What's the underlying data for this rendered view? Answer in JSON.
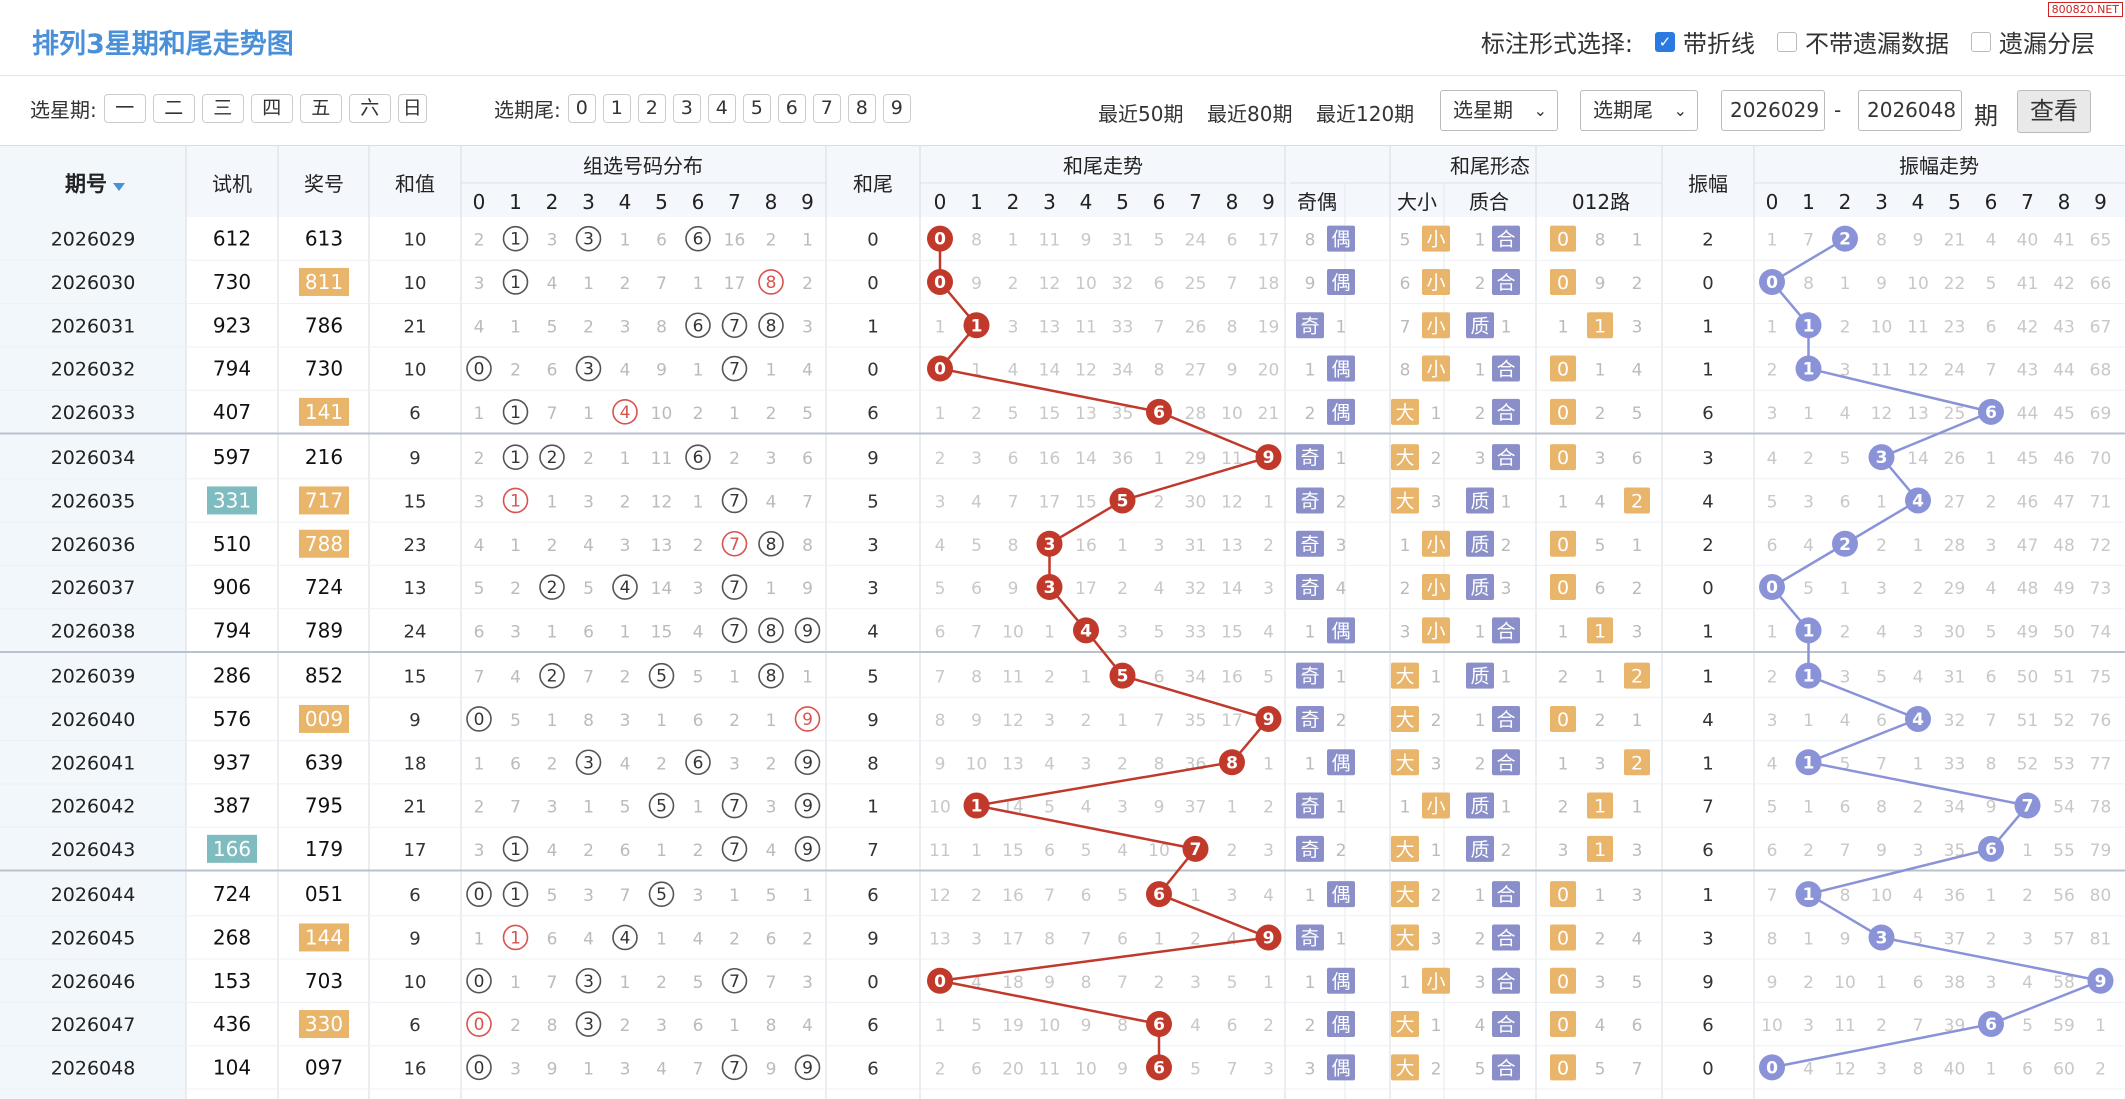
{
  "header": {
    "title": "排列3星期和尾走势图",
    "mode_label": "标注形式选择:",
    "watermark": "800820.NET",
    "options": [
      {
        "label": "带折线",
        "checked": true
      },
      {
        "label": "不带遗漏数据",
        "checked": false
      },
      {
        "label": "遗漏分层",
        "checked": false
      }
    ]
  },
  "filters": {
    "weekday_label": "选星期:",
    "weekdays": [
      "一",
      "二",
      "三",
      "四",
      "五",
      "六",
      "日"
    ],
    "tail_label": "选期尾:",
    "tails": [
      "0",
      "1",
      "2",
      "3",
      "4",
      "5",
      "6",
      "7",
      "8",
      "9"
    ],
    "recent": [
      "最近50期",
      "最近80期",
      "最近120期"
    ],
    "select_week": "选星期",
    "select_tail": "选期尾",
    "from": "2026029",
    "dash": "-",
    "to": "2026048",
    "qi": "期",
    "query_button": "查看"
  },
  "columns": {
    "issue": "期号",
    "trial": "试机",
    "prize": "奖号",
    "sum": "和值",
    "group": "组选号码分布",
    "tail": "和尾",
    "tail_trend": "和尾走势",
    "form": "和尾形态",
    "parity": "奇偶",
    "size": "大小",
    "prime": "质合",
    "route": "012路",
    "amp": "振幅",
    "amp_trend": "振幅走势",
    "digits": [
      "0",
      "1",
      "2",
      "3",
      "4",
      "5",
      "6",
      "7",
      "8",
      "9"
    ]
  },
  "colors": {
    "line_red": "#c0392b",
    "line_blue": "#8a93d8",
    "badge_orange": "#e8b56a",
    "badge_purple": "#8a8fc9",
    "badge_teal": "#7fbcbf"
  },
  "rows": [
    {
      "issue": "2026029",
      "trial": "612",
      "prize": "613",
      "prize_hl": "",
      "trial_hl": "",
      "sum": "10",
      "group": [
        "2",
        "○",
        "3",
        "○",
        "1",
        "6",
        "○",
        "16",
        "2",
        "1"
      ],
      "tail": "0",
      "tail_trend": [
        "○",
        "8",
        "1",
        "11",
        "9",
        "31",
        "5",
        "24",
        "6",
        "17"
      ],
      "par": [
        "8",
        "偶"
      ],
      "size": [
        "5",
        "小"
      ],
      "prime": [
        "1",
        "合"
      ],
      "route": [
        "0",
        "8",
        "1"
      ],
      "amp": "2",
      "amp_trend": [
        "1",
        "7",
        "○",
        "8",
        "9",
        "21",
        "4",
        "40",
        "41",
        "65"
      ]
    },
    {
      "issue": "2026030",
      "trial": "730",
      "prize": "811",
      "prize_hl": "o",
      "trial_hl": "",
      "sum": "10",
      "group": [
        "3",
        "○",
        "4",
        "1",
        "2",
        "7",
        "1",
        "17",
        "○",
        "2"
      ],
      "tail": "0",
      "tail_trend": [
        "○",
        "9",
        "2",
        "12",
        "10",
        "32",
        "6",
        "25",
        "7",
        "18"
      ],
      "par": [
        "9",
        "偶"
      ],
      "size": [
        "6",
        "小"
      ],
      "prime": [
        "2",
        "合"
      ],
      "route": [
        "0",
        "9",
        "2"
      ],
      "amp": "0",
      "amp_trend": [
        "○",
        "8",
        "1",
        "9",
        "10",
        "22",
        "5",
        "41",
        "42",
        "66"
      ]
    },
    {
      "issue": "2026031",
      "trial": "923",
      "prize": "786",
      "prize_hl": "",
      "trial_hl": "",
      "sum": "21",
      "group": [
        "4",
        "1",
        "5",
        "2",
        "3",
        "8",
        "○",
        "○",
        "○",
        "3"
      ],
      "tail": "1",
      "tail_trend": [
        "1",
        "○",
        "3",
        "13",
        "11",
        "33",
        "7",
        "26",
        "8",
        "19"
      ],
      "par": [
        "奇",
        "1"
      ],
      "size": [
        "7",
        "小"
      ],
      "prime": [
        "质",
        "1"
      ],
      "route": [
        "1",
        "1",
        "3"
      ],
      "amp": "1",
      "amp_trend": [
        "1",
        "○",
        "2",
        "10",
        "11",
        "23",
        "6",
        "42",
        "43",
        "67"
      ]
    },
    {
      "issue": "2026032",
      "trial": "794",
      "prize": "730",
      "prize_hl": "",
      "trial_hl": "",
      "sum": "10",
      "group": [
        "○",
        "2",
        "6",
        "○",
        "4",
        "9",
        "1",
        "○",
        "1",
        "4"
      ],
      "tail": "0",
      "tail_trend": [
        "○",
        "1",
        "4",
        "14",
        "12",
        "34",
        "8",
        "27",
        "9",
        "20"
      ],
      "par": [
        "1",
        "偶"
      ],
      "size": [
        "8",
        "小"
      ],
      "prime": [
        "1",
        "合"
      ],
      "route": [
        "0",
        "1",
        "4"
      ],
      "amp": "1",
      "amp_trend": [
        "2",
        "○",
        "3",
        "11",
        "12",
        "24",
        "7",
        "43",
        "44",
        "68"
      ]
    },
    {
      "issue": "2026033",
      "trial": "407",
      "prize": "141",
      "prize_hl": "o",
      "trial_hl": "",
      "sum": "6",
      "group": [
        "1",
        "○",
        "7",
        "1",
        "○",
        "10",
        "2",
        "1",
        "2",
        "5"
      ],
      "tail": "6",
      "tail_trend": [
        "1",
        "2",
        "5",
        "15",
        "13",
        "35",
        "○",
        "28",
        "10",
        "21"
      ],
      "par": [
        "2",
        "偶"
      ],
      "size": [
        "大",
        "1"
      ],
      "prime": [
        "2",
        "合"
      ],
      "route": [
        "0",
        "2",
        "5"
      ],
      "amp": "6",
      "amp_trend": [
        "3",
        "1",
        "4",
        "12",
        "13",
        "25",
        "○",
        "44",
        "45",
        "69"
      ]
    },
    {
      "issue": "2026034",
      "trial": "597",
      "prize": "216",
      "prize_hl": "",
      "trial_hl": "",
      "sum": "9",
      "group": [
        "2",
        "○",
        "○",
        "2",
        "1",
        "11",
        "○",
        "2",
        "3",
        "6"
      ],
      "tail": "9",
      "tail_trend": [
        "2",
        "3",
        "6",
        "16",
        "14",
        "36",
        "1",
        "29",
        "11",
        "○"
      ],
      "par": [
        "奇",
        "1"
      ],
      "size": [
        "大",
        "2"
      ],
      "prime": [
        "3",
        "合"
      ],
      "route": [
        "0",
        "3",
        "6"
      ],
      "amp": "3",
      "amp_trend": [
        "4",
        "2",
        "5",
        "○",
        "14",
        "26",
        "1",
        "45",
        "46",
        "70"
      ]
    },
    {
      "issue": "2026035",
      "trial": "331",
      "prize": "717",
      "prize_hl": "o",
      "trial_hl": "t",
      "sum": "15",
      "group": [
        "3",
        "○",
        "1",
        "3",
        "2",
        "12",
        "1",
        "○",
        "4",
        "7"
      ],
      "tail": "5",
      "tail_trend": [
        "3",
        "4",
        "7",
        "17",
        "15",
        "○",
        "2",
        "30",
        "12",
        "1"
      ],
      "par": [
        "奇",
        "2"
      ],
      "size": [
        "大",
        "3"
      ],
      "prime": [
        "质",
        "1"
      ],
      "route": [
        "1",
        "4",
        "2"
      ],
      "amp": "4",
      "amp_trend": [
        "5",
        "3",
        "6",
        "1",
        "○",
        "27",
        "2",
        "46",
        "47",
        "71"
      ]
    },
    {
      "issue": "2026036",
      "trial": "510",
      "prize": "788",
      "prize_hl": "o",
      "trial_hl": "",
      "sum": "23",
      "group": [
        "4",
        "1",
        "2",
        "4",
        "3",
        "13",
        "2",
        "○",
        "○",
        "8"
      ],
      "tail": "3",
      "tail_trend": [
        "4",
        "5",
        "8",
        "○",
        "16",
        "1",
        "3",
        "31",
        "13",
        "2"
      ],
      "par": [
        "奇",
        "3"
      ],
      "size": [
        "1",
        "小"
      ],
      "prime": [
        "质",
        "2"
      ],
      "route": [
        "0",
        "5",
        "1"
      ],
      "amp": "2",
      "amp_trend": [
        "6",
        "4",
        "○",
        "2",
        "1",
        "28",
        "3",
        "47",
        "48",
        "72"
      ]
    },
    {
      "issue": "2026037",
      "trial": "906",
      "prize": "724",
      "prize_hl": "",
      "trial_hl": "",
      "sum": "13",
      "group": [
        "5",
        "2",
        "○",
        "5",
        "○",
        "14",
        "3",
        "○",
        "1",
        "9"
      ],
      "tail": "3",
      "tail_trend": [
        "5",
        "6",
        "9",
        "○",
        "17",
        "2",
        "4",
        "32",
        "14",
        "3"
      ],
      "par": [
        "奇",
        "4"
      ],
      "size": [
        "2",
        "小"
      ],
      "prime": [
        "质",
        "3"
      ],
      "route": [
        "0",
        "6",
        "2"
      ],
      "amp": "0",
      "amp_trend": [
        "○",
        "5",
        "1",
        "3",
        "2",
        "29",
        "4",
        "48",
        "49",
        "73"
      ]
    },
    {
      "issue": "2026038",
      "trial": "794",
      "prize": "789",
      "prize_hl": "",
      "trial_hl": "",
      "sum": "24",
      "group": [
        "6",
        "3",
        "1",
        "6",
        "1",
        "15",
        "4",
        "○",
        "○",
        "○"
      ],
      "tail": "4",
      "tail_trend": [
        "6",
        "7",
        "10",
        "1",
        "○",
        "3",
        "5",
        "33",
        "15",
        "4"
      ],
      "par": [
        "1",
        "偶"
      ],
      "size": [
        "3",
        "小"
      ],
      "prime": [
        "1",
        "合"
      ],
      "route": [
        "1",
        "1",
        "3"
      ],
      "amp": "1",
      "amp_trend": [
        "1",
        "○",
        "2",
        "4",
        "3",
        "30",
        "5",
        "49",
        "50",
        "74"
      ]
    },
    {
      "issue": "2026039",
      "trial": "286",
      "prize": "852",
      "prize_hl": "",
      "trial_hl": "",
      "sum": "15",
      "group": [
        "7",
        "4",
        "○",
        "7",
        "2",
        "○",
        "5",
        "1",
        "○",
        "1"
      ],
      "tail": "5",
      "tail_trend": [
        "7",
        "8",
        "11",
        "2",
        "1",
        "○",
        "6",
        "34",
        "16",
        "5"
      ],
      "par": [
        "奇",
        "1"
      ],
      "size": [
        "大",
        "1"
      ],
      "prime": [
        "质",
        "1"
      ],
      "route": [
        "2",
        "1",
        "2"
      ],
      "amp": "1",
      "amp_trend": [
        "2",
        "○",
        "3",
        "5",
        "4",
        "31",
        "6",
        "50",
        "51",
        "75"
      ]
    },
    {
      "issue": "2026040",
      "trial": "576",
      "prize": "009",
      "prize_hl": "o",
      "trial_hl": "",
      "sum": "9",
      "group": [
        "○",
        "5",
        "1",
        "8",
        "3",
        "1",
        "6",
        "2",
        "1",
        "○"
      ],
      "tail": "9",
      "tail_trend": [
        "8",
        "9",
        "12",
        "3",
        "2",
        "1",
        "7",
        "35",
        "17",
        "○"
      ],
      "par": [
        "奇",
        "2"
      ],
      "size": [
        "大",
        "2"
      ],
      "prime": [
        "1",
        "合"
      ],
      "route": [
        "0",
        "2",
        "1"
      ],
      "amp": "4",
      "amp_trend": [
        "3",
        "1",
        "4",
        "6",
        "○",
        "32",
        "7",
        "51",
        "52",
        "76"
      ]
    },
    {
      "issue": "2026041",
      "trial": "937",
      "prize": "639",
      "prize_hl": "",
      "trial_hl": "",
      "sum": "18",
      "group": [
        "1",
        "6",
        "2",
        "○",
        "4",
        "2",
        "○",
        "3",
        "2",
        "○"
      ],
      "tail": "8",
      "tail_trend": [
        "9",
        "10",
        "13",
        "4",
        "3",
        "2",
        "8",
        "36",
        "○",
        "1"
      ],
      "par": [
        "1",
        "偶"
      ],
      "size": [
        "大",
        "3"
      ],
      "prime": [
        "2",
        "合"
      ],
      "route": [
        "1",
        "3",
        "2"
      ],
      "amp": "1",
      "amp_trend": [
        "4",
        "○",
        "5",
        "7",
        "1",
        "33",
        "8",
        "52",
        "53",
        "77"
      ]
    },
    {
      "issue": "2026042",
      "trial": "387",
      "prize": "795",
      "prize_hl": "",
      "trial_hl": "",
      "sum": "21",
      "group": [
        "2",
        "7",
        "3",
        "1",
        "5",
        "○",
        "1",
        "○",
        "3",
        "○"
      ],
      "tail": "1",
      "tail_trend": [
        "10",
        "○",
        "14",
        "5",
        "4",
        "3",
        "9",
        "37",
        "1",
        "2"
      ],
      "par": [
        "奇",
        "1"
      ],
      "size": [
        "1",
        "小"
      ],
      "prime": [
        "质",
        "1"
      ],
      "route": [
        "2",
        "1",
        "1"
      ],
      "amp": "7",
      "amp_trend": [
        "5",
        "1",
        "6",
        "8",
        "2",
        "34",
        "9",
        "○",
        "54",
        "78"
      ]
    },
    {
      "issue": "2026043",
      "trial": "166",
      "prize": "179",
      "prize_hl": "",
      "trial_hl": "t",
      "sum": "17",
      "group": [
        "3",
        "○",
        "4",
        "2",
        "6",
        "1",
        "2",
        "○",
        "4",
        "○"
      ],
      "tail": "7",
      "tail_trend": [
        "11",
        "1",
        "15",
        "6",
        "5",
        "4",
        "10",
        "○",
        "2",
        "3"
      ],
      "par": [
        "奇",
        "2"
      ],
      "size": [
        "大",
        "1"
      ],
      "prime": [
        "质",
        "2"
      ],
      "route": [
        "3",
        "1",
        "3"
      ],
      "amp": "6",
      "amp_trend": [
        "6",
        "2",
        "7",
        "9",
        "3",
        "35",
        "○",
        "1",
        "55",
        "79"
      ]
    },
    {
      "issue": "2026044",
      "trial": "724",
      "prize": "051",
      "prize_hl": "",
      "trial_hl": "",
      "sum": "6",
      "group": [
        "○",
        "○",
        "5",
        "3",
        "7",
        "○",
        "3",
        "1",
        "5",
        "1"
      ],
      "tail": "6",
      "tail_trend": [
        "12",
        "2",
        "16",
        "7",
        "6",
        "5",
        "○",
        "1",
        "3",
        "4"
      ],
      "par": [
        "1",
        "偶"
      ],
      "size": [
        "大",
        "2"
      ],
      "prime": [
        "1",
        "合"
      ],
      "route": [
        "0",
        "1",
        "3"
      ],
      "amp": "1",
      "amp_trend": [
        "7",
        "○",
        "8",
        "10",
        "4",
        "36",
        "1",
        "2",
        "56",
        "80"
      ]
    },
    {
      "issue": "2026045",
      "trial": "268",
      "prize": "144",
      "prize_hl": "o",
      "trial_hl": "",
      "sum": "9",
      "group": [
        "1",
        "○",
        "6",
        "4",
        "○",
        "1",
        "4",
        "2",
        "6",
        "2"
      ],
      "tail": "9",
      "tail_trend": [
        "13",
        "3",
        "17",
        "8",
        "7",
        "6",
        "1",
        "2",
        "4",
        "○"
      ],
      "par": [
        "奇",
        "1"
      ],
      "size": [
        "大",
        "3"
      ],
      "prime": [
        "2",
        "合"
      ],
      "route": [
        "0",
        "2",
        "4"
      ],
      "amp": "3",
      "amp_trend": [
        "8",
        "1",
        "9",
        "○",
        "5",
        "37",
        "2",
        "3",
        "57",
        "81"
      ]
    },
    {
      "issue": "2026046",
      "trial": "153",
      "prize": "703",
      "prize_hl": "",
      "trial_hl": "",
      "sum": "10",
      "group": [
        "○",
        "1",
        "7",
        "○",
        "1",
        "2",
        "5",
        "○",
        "7",
        "3"
      ],
      "tail": "0",
      "tail_trend": [
        "○",
        "4",
        "18",
        "9",
        "8",
        "7",
        "2",
        "3",
        "5",
        "1"
      ],
      "par": [
        "1",
        "偶"
      ],
      "size": [
        "1",
        "小"
      ],
      "prime": [
        "3",
        "合"
      ],
      "route": [
        "0",
        "3",
        "5"
      ],
      "amp": "9",
      "amp_trend": [
        "9",
        "2",
        "10",
        "1",
        "6",
        "38",
        "3",
        "4",
        "58",
        "○"
      ]
    },
    {
      "issue": "2026047",
      "trial": "436",
      "prize": "330",
      "prize_hl": "o",
      "trial_hl": "",
      "sum": "6",
      "group": [
        "○",
        "2",
        "8",
        "○",
        "2",
        "3",
        "6",
        "1",
        "8",
        "4"
      ],
      "tail": "6",
      "tail_trend": [
        "1",
        "5",
        "19",
        "10",
        "9",
        "8",
        "○",
        "4",
        "6",
        "2"
      ],
      "par": [
        "2",
        "偶"
      ],
      "size": [
        "大",
        "1"
      ],
      "prime": [
        "4",
        "合"
      ],
      "route": [
        "0",
        "4",
        "6"
      ],
      "amp": "6",
      "amp_trend": [
        "10",
        "3",
        "11",
        "2",
        "7",
        "39",
        "○",
        "5",
        "59",
        "1"
      ]
    },
    {
      "issue": "2026048",
      "trial": "104",
      "prize": "097",
      "prize_hl": "",
      "trial_hl": "",
      "sum": "16",
      "group": [
        "○",
        "3",
        "9",
        "1",
        "3",
        "4",
        "7",
        "○",
        "9",
        "○"
      ],
      "tail": "6",
      "tail_trend": [
        "2",
        "6",
        "20",
        "11",
        "10",
        "9",
        "○",
        "5",
        "7",
        "3"
      ],
      "par": [
        "3",
        "偶"
      ],
      "size": [
        "大",
        "2"
      ],
      "prime": [
        "5",
        "合"
      ],
      "route": [
        "0",
        "5",
        "7"
      ],
      "amp": "0",
      "amp_trend": [
        "○",
        "4",
        "12",
        "3",
        "8",
        "40",
        "1",
        "6",
        "60",
        "2"
      ]
    }
  ]
}
